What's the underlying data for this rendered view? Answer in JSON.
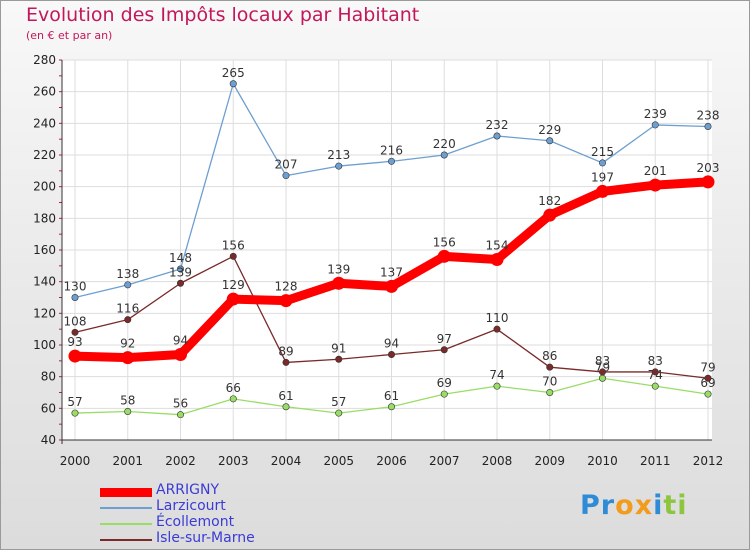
{
  "header": {
    "title": "Evolution des Impôts locaux par Habitant",
    "subtitle": "(en € et par an)"
  },
  "logo": {
    "letters": [
      "P",
      "r",
      "o",
      "x",
      "i",
      "t",
      "i"
    ],
    "colors": [
      "#2e8bd6",
      "#2e8bd6",
      "#f29b1d",
      "#f29b1d",
      "#2e8bd6",
      "#8cc63f",
      "#8cc63f"
    ]
  },
  "chart_data": {
    "type": "line",
    "title": "Evolution des Impôts locaux par Habitant",
    "subtitle": "(en € et par an)",
    "xlabel": "",
    "ylabel": "",
    "x": [
      "2000",
      "2001",
      "2002",
      "2003",
      "2004",
      "2005",
      "2006",
      "2007",
      "2008",
      "2009",
      "2010",
      "2011",
      "2012"
    ],
    "ylim": [
      40,
      280
    ],
    "yticks": [
      40,
      60,
      80,
      100,
      120,
      140,
      160,
      180,
      200,
      220,
      240,
      260,
      280
    ],
    "grid": true,
    "legend_position": "bottom-left",
    "series": [
      {
        "name": "ARRIGNY",
        "values": [
          93,
          92,
          94,
          129,
          128,
          139,
          137,
          156,
          154,
          182,
          197,
          201,
          203
        ],
        "color": "#ff0000",
        "emphasis": "thick"
      },
      {
        "name": "Larzicourt",
        "values": [
          130,
          138,
          148,
          265,
          207,
          213,
          216,
          220,
          232,
          229,
          215,
          239,
          238
        ],
        "color": "#6e9fd1",
        "emphasis": "normal"
      },
      {
        "name": "Écollemont",
        "values": [
          57,
          58,
          56,
          66,
          61,
          57,
          61,
          69,
          74,
          70,
          79,
          74,
          69
        ],
        "color": "#99dd66",
        "emphasis": "normal"
      },
      {
        "name": "Isle-sur-Marne",
        "values": [
          108,
          116,
          139,
          156,
          89,
          91,
          94,
          97,
          110,
          86,
          83,
          83,
          79
        ],
        "color": "#7a2a2a",
        "emphasis": "normal"
      }
    ]
  }
}
